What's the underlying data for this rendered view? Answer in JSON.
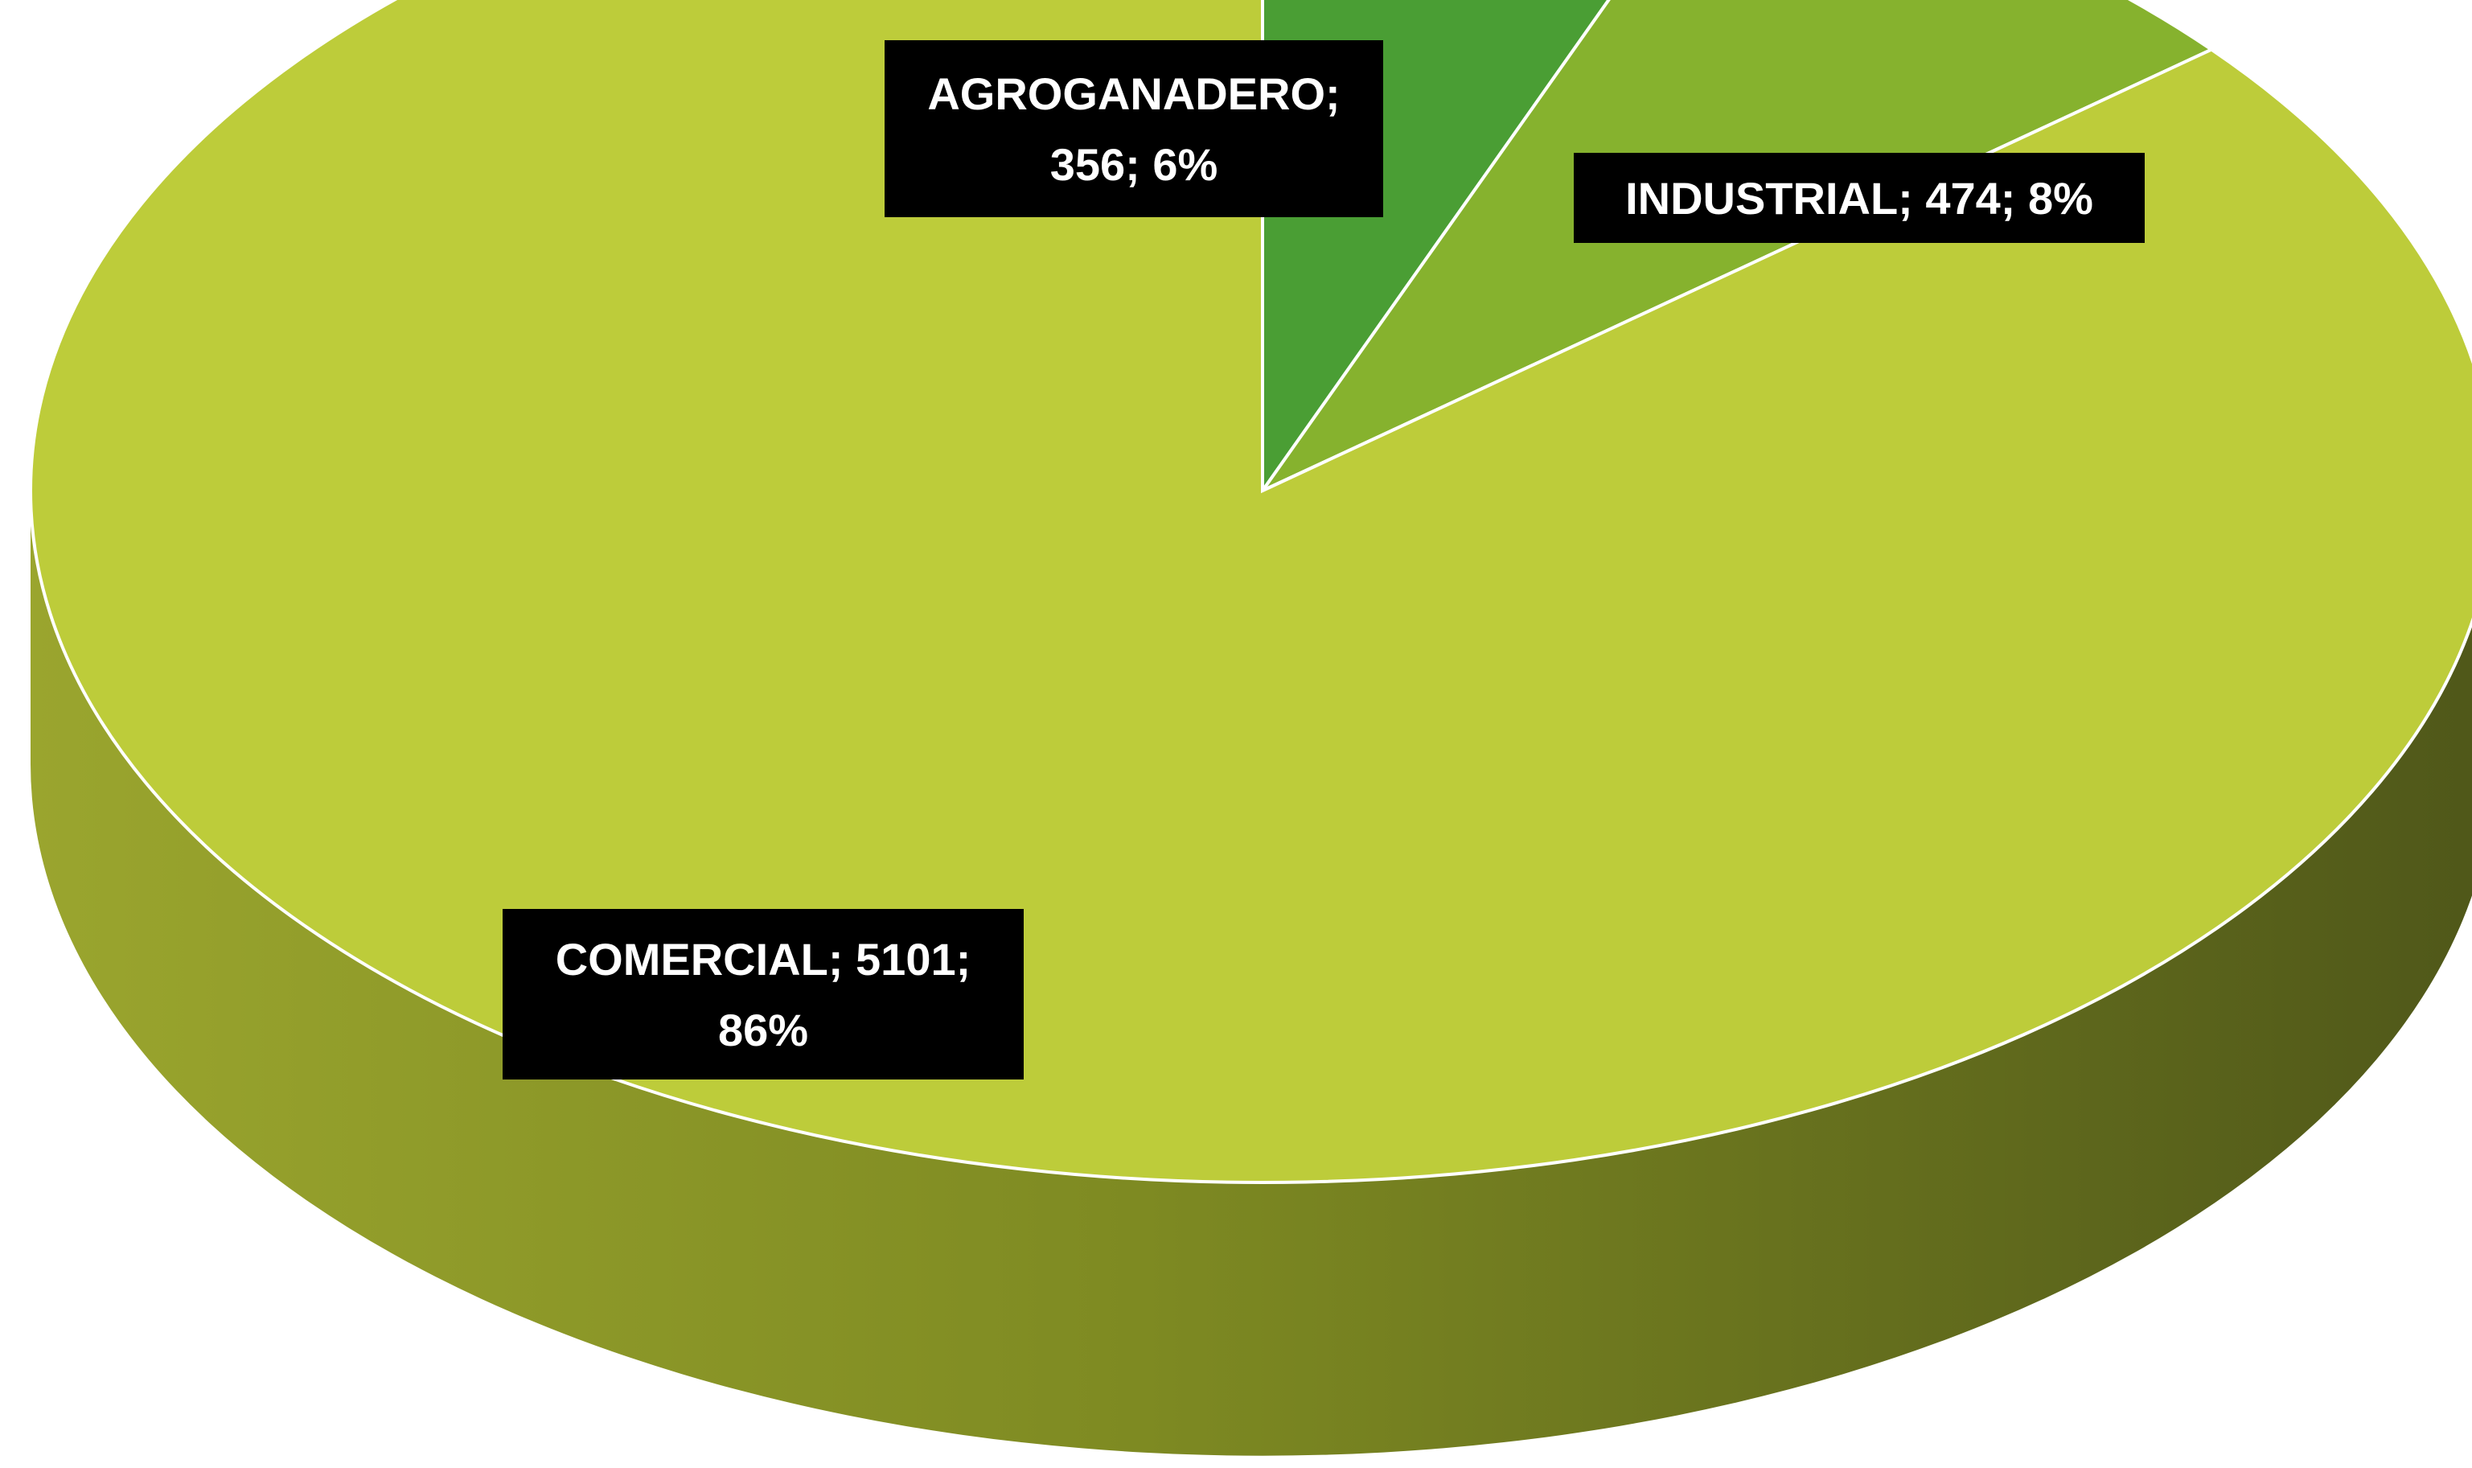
{
  "chart_data": {
    "type": "pie",
    "style": "3d",
    "title": "",
    "slices": [
      {
        "name": "AGROGANADERO",
        "value": 356,
        "percent": "6%",
        "color": "#4a9e34",
        "label_lines": [
          "AGROGANADERO;",
          "356; 6%"
        ]
      },
      {
        "name": "INDUSTRIAL",
        "value": 474,
        "percent": "8%",
        "color": "#86b22e",
        "label_lines": [
          "INDUSTRIAL; 474; 8%"
        ]
      },
      {
        "name": "COMERCIAL",
        "value": 5101,
        "percent": "86%",
        "color": "#bdcc3a",
        "label_lines": [
          "COMERCIAL; 5101;",
          "86%"
        ]
      }
    ],
    "label_background": "#000000",
    "label_text_color": "#ffffff",
    "side_color_light": "#9aa52e",
    "side_color_dark": "#4f5719"
  }
}
